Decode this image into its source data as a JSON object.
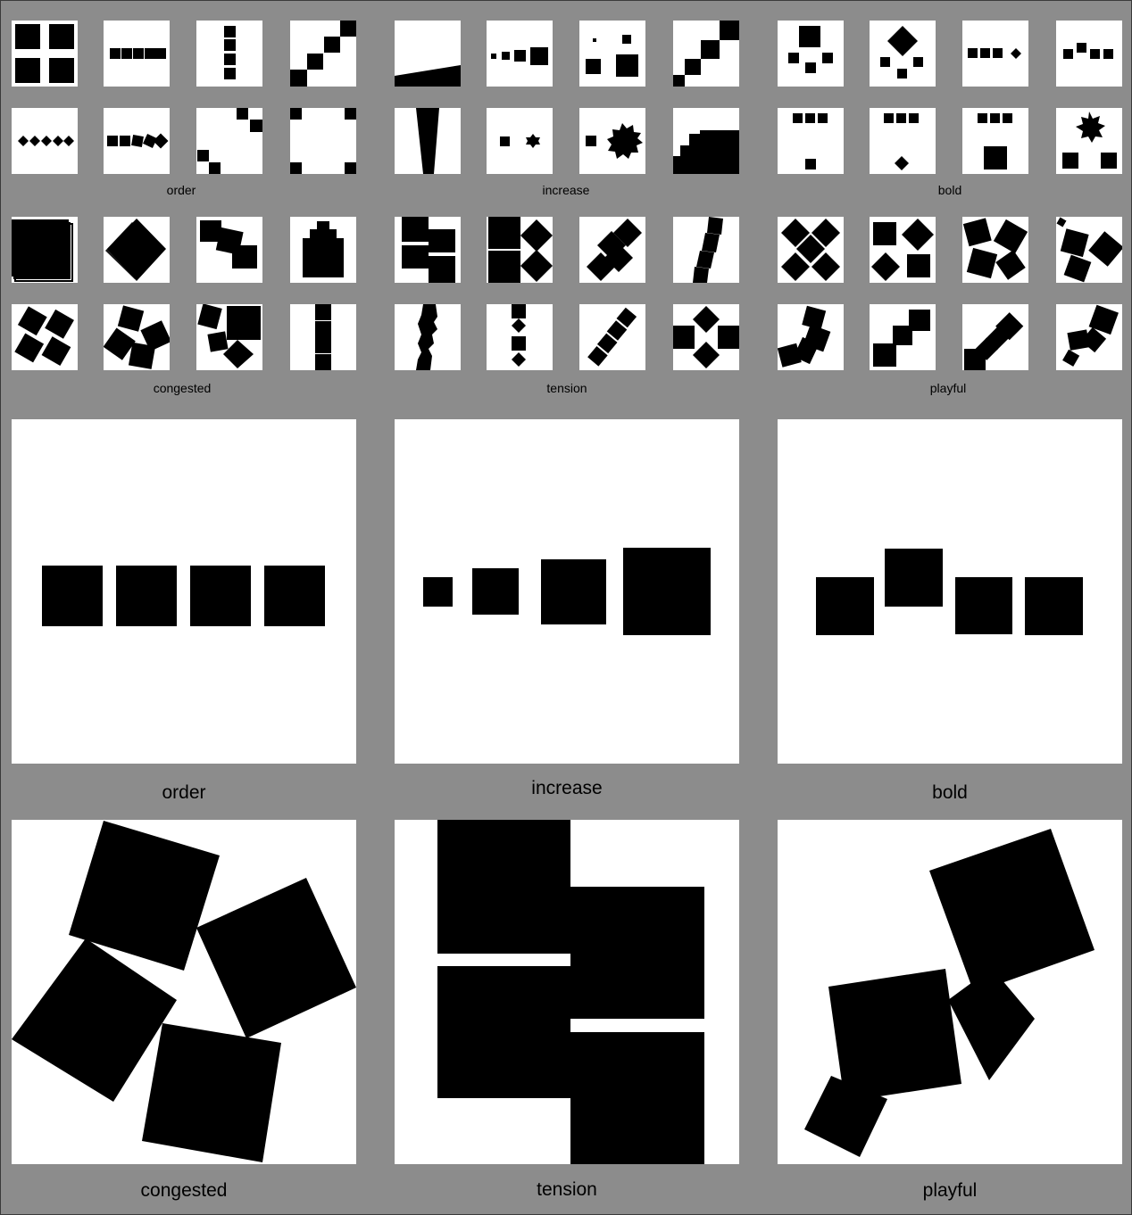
{
  "labels": {
    "order": "order",
    "increase": "increase",
    "bold": "bold",
    "congested": "congested",
    "tension": "tension",
    "playful": "playful"
  },
  "colors": {
    "background": "#8c8c8c",
    "tile": "#ffffff",
    "shape": "#000000"
  }
}
